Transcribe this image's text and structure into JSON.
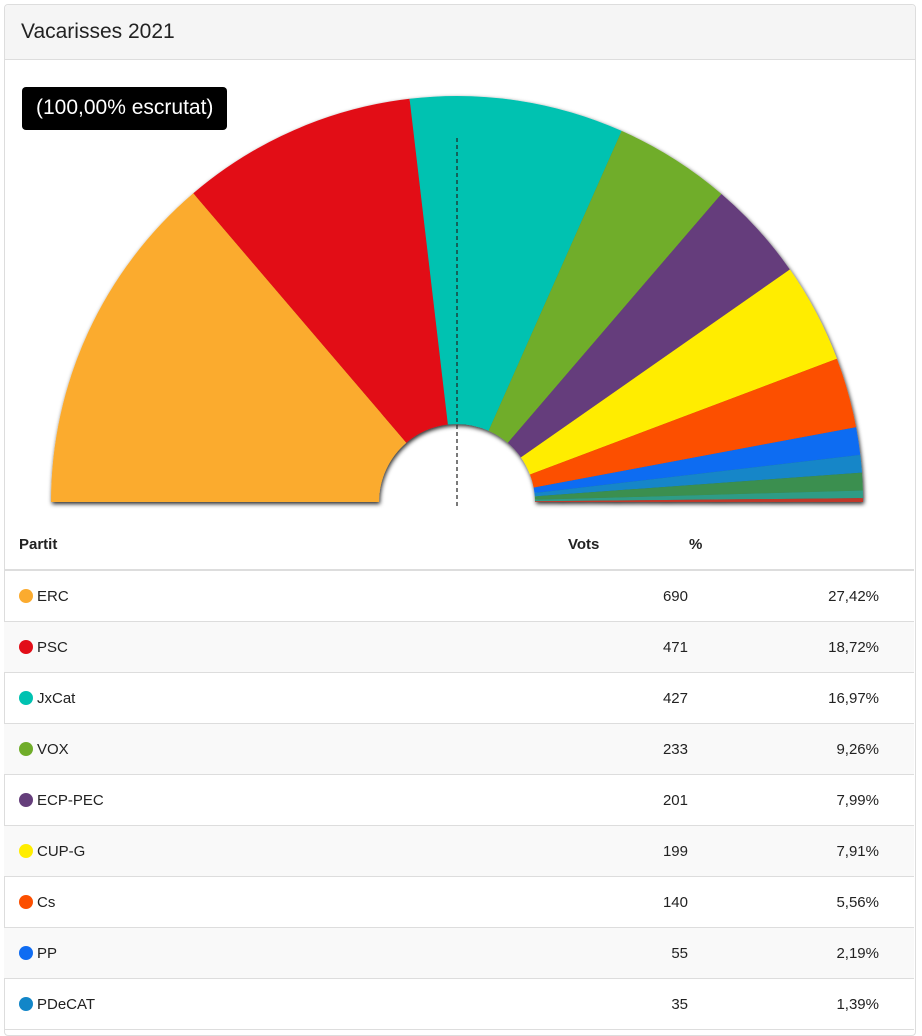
{
  "card": {
    "title": "Vacarisses 2021"
  },
  "scrutiny_label": "(100,00% escrutat)",
  "table": {
    "headers": {
      "party": "Partit",
      "votes": "Vots",
      "pct": "%"
    },
    "rows": [
      {
        "party": "ERC",
        "votes": "690",
        "pct": "27,42%",
        "color": "#fbab2f"
      },
      {
        "party": "PSC",
        "votes": "471",
        "pct": "18,72%",
        "color": "#e20e18"
      },
      {
        "party": "JxCat",
        "votes": "427",
        "pct": "16,97%",
        "color": "#00c2b1"
      },
      {
        "party": "VOX",
        "votes": "233",
        "pct": "9,26%",
        "color": "#70ad2a"
      },
      {
        "party": "ECP-PEC",
        "votes": "201",
        "pct": "7,99%",
        "color": "#653e7b"
      },
      {
        "party": "CUP-G",
        "votes": "199",
        "pct": "7,91%",
        "color": "#ffed00"
      },
      {
        "party": "Cs",
        "votes": "140",
        "pct": "5,56%",
        "color": "#fc4f00"
      },
      {
        "party": "PP",
        "votes": "55",
        "pct": "2,19%",
        "color": "#0f6cf2"
      },
      {
        "party": "PDeCAT",
        "votes": "35",
        "pct": "1,39%",
        "color": "#1286c8"
      }
    ]
  },
  "chart_data": {
    "type": "pie",
    "subtype": "semicircle-donut",
    "categories": [
      "ERC",
      "PSC",
      "JxCat",
      "VOX",
      "ECP-PEC",
      "CUP-G",
      "Cs",
      "PP",
      "PDeCAT",
      "",
      "",
      ""
    ],
    "values": [
      27.42,
      18.72,
      16.97,
      9.26,
      7.99,
      7.91,
      5.56,
      2.19,
      1.39,
      1.4,
      0.6,
      0.3
    ],
    "colors": [
      "#fbab2f",
      "#e20e18",
      "#00c2b1",
      "#70ad2a",
      "#653e7b",
      "#ffed00",
      "#fc4f00",
      "#0f6cf2",
      "#1286c8",
      "#3a8f4f",
      "#2e9c86",
      "#c0392b"
    ],
    "majority_line": true
  }
}
